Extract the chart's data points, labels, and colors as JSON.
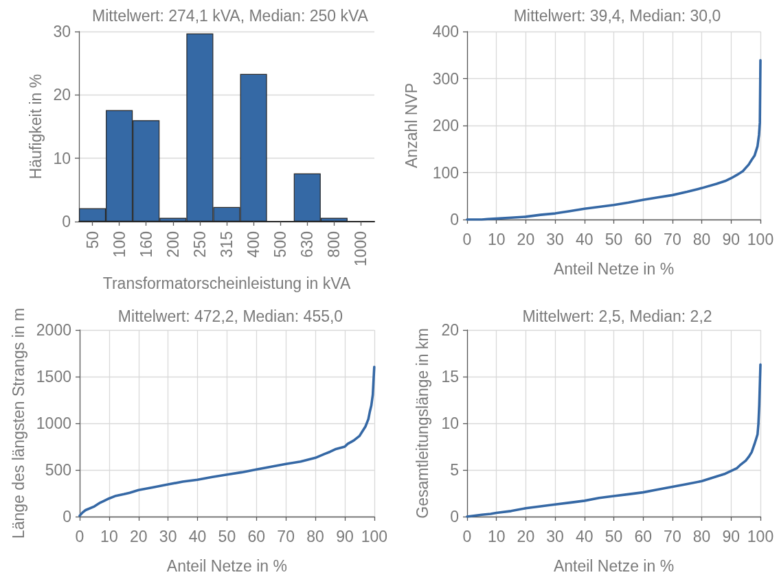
{
  "chart_data": [
    {
      "type": "bar",
      "title": "Mittelwert: 274,1 kVA, Median: 250 kVA",
      "xlabel": "Transformatorscheinleistung in kVA",
      "ylabel": "Häufigkeit in %",
      "categories": [
        "50",
        "100",
        "160",
        "200",
        "250",
        "315",
        "400",
        "500",
        "630",
        "800",
        "1000"
      ],
      "values": [
        2.1,
        17.6,
        16.0,
        0.6,
        29.7,
        2.3,
        23.3,
        0,
        7.6,
        0.6,
        0
      ],
      "color": "#3569a5",
      "ylim": [
        0,
        30
      ],
      "yticks": [
        0,
        10,
        20,
        30
      ],
      "grid": "y"
    },
    {
      "type": "line",
      "title": "Mittelwert: 39,4, Median: 30,0",
      "xlabel": "Anteil Netze in %",
      "ylabel": "Anzahl NVP",
      "x": [
        0,
        5,
        7,
        10,
        15,
        20,
        25,
        30,
        35,
        40,
        45,
        50,
        55,
        60,
        65,
        70,
        75,
        80,
        85,
        88,
        90,
        92,
        94,
        95,
        96,
        97,
        98,
        99,
        99.5,
        99.8,
        100
      ],
      "values": [
        0,
        0,
        1,
        2,
        4,
        6,
        10,
        13,
        18,
        23,
        27,
        31,
        36,
        42,
        47,
        52,
        59,
        67,
        76,
        82,
        88,
        95,
        103,
        110,
        117,
        127,
        136,
        156,
        180,
        206,
        339
      ],
      "color": "#3568a5",
      "xlim": [
        0,
        100
      ],
      "xticks": [
        0,
        10,
        20,
        30,
        40,
        50,
        60,
        70,
        80,
        90,
        100
      ],
      "ylim": [
        0,
        400
      ],
      "yticks": [
        0,
        100,
        200,
        300,
        400
      ],
      "grid": true,
      "marker": "none"
    },
    {
      "type": "line",
      "title": "Mittelwert: 472,2, Median: 455,0",
      "xlabel": "Anteil Netze in %",
      "ylabel": "Länge des längsten Strangs in m",
      "x": [
        0,
        1,
        2,
        5,
        7,
        8,
        10,
        12,
        15,
        17,
        20,
        25,
        30,
        35,
        40,
        45,
        50,
        55,
        60,
        65,
        70,
        75,
        80,
        83,
        85,
        87,
        90,
        91,
        93,
        95,
        96,
        97,
        98,
        98.5,
        99,
        99.5,
        100
      ],
      "values": [
        10,
        45,
        70,
        110,
        150,
        165,
        195,
        220,
        240,
        255,
        285,
        315,
        345,
        375,
        395,
        425,
        450,
        475,
        505,
        535,
        565,
        590,
        630,
        670,
        695,
        725,
        750,
        780,
        815,
        865,
        915,
        965,
        1045,
        1125,
        1190,
        1305,
        1605
      ],
      "color": "#3568a5",
      "xlim": [
        0,
        100
      ],
      "xticks": [
        0,
        10,
        20,
        30,
        40,
        50,
        60,
        70,
        80,
        90,
        100
      ],
      "ylim": [
        0,
        2000
      ],
      "yticks": [
        0,
        500,
        1000,
        1500,
        2000
      ],
      "grid": true,
      "marker": "none"
    },
    {
      "type": "line",
      "title": "Mittelwert: 2,5, Median: 2,2",
      "xlabel": "Anteil Netze in %",
      "ylabel": "Gesamtleitungslänge in km",
      "x": [
        0,
        5,
        8,
        10,
        15,
        20,
        25,
        30,
        35,
        40,
        45,
        50,
        55,
        60,
        65,
        70,
        75,
        80,
        85,
        88,
        90,
        92,
        93,
        95,
        96,
        97,
        98,
        99,
        99.3,
        99.6,
        100
      ],
      "values": [
        0,
        0.2,
        0.3,
        0.4,
        0.6,
        0.9,
        1.1,
        1.3,
        1.5,
        1.7,
        2,
        2.2,
        2.4,
        2.6,
        2.9,
        3.2,
        3.5,
        3.8,
        4.3,
        4.6,
        4.9,
        5.2,
        5.5,
        6,
        6.4,
        6.9,
        7.8,
        8.8,
        9.9,
        12,
        16.3
      ],
      "color": "#3568a5",
      "xlim": [
        0,
        100
      ],
      "xticks": [
        0,
        10,
        20,
        30,
        40,
        50,
        60,
        70,
        80,
        90,
        100
      ],
      "ylim": [
        0,
        20
      ],
      "yticks": [
        0,
        5,
        10,
        15,
        20
      ],
      "grid": true,
      "marker": "none"
    }
  ]
}
